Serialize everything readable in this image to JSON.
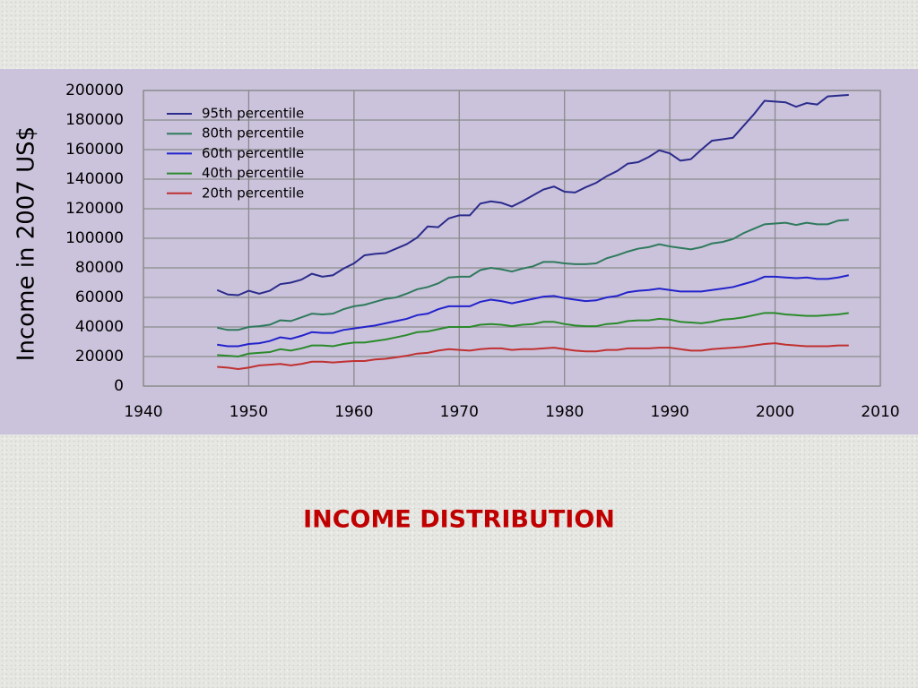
{
  "chart_data": {
    "type": "line",
    "ylabel": "Income in 2007 US$",
    "x": [
      1947,
      1948,
      1949,
      1950,
      1951,
      1952,
      1953,
      1954,
      1955,
      1956,
      1957,
      1958,
      1959,
      1960,
      1961,
      1962,
      1963,
      1964,
      1965,
      1966,
      1967,
      1968,
      1969,
      1970,
      1971,
      1972,
      1973,
      1974,
      1975,
      1976,
      1977,
      1978,
      1979,
      1980,
      1981,
      1982,
      1983,
      1984,
      1985,
      1986,
      1987,
      1988,
      1989,
      1990,
      1991,
      1992,
      1993,
      1994,
      1995,
      1996,
      1997,
      1998,
      1999,
      2000,
      2001,
      2002,
      2003,
      2004,
      2005,
      2006,
      2007
    ],
    "series": [
      {
        "name": "95th percentile",
        "color": "#2b2b8c",
        "values": [
          65000,
          62000,
          61500,
          64500,
          62500,
          64500,
          69000,
          70000,
          72000,
          76000,
          74000,
          75000,
          79500,
          83000,
          88500,
          89500,
          90000,
          93000,
          96000,
          100500,
          108000,
          107500,
          113500,
          115500,
          115500,
          123500,
          125000,
          124000,
          121500,
          125000,
          129000,
          133000,
          135000,
          131500,
          131000,
          134500,
          137500,
          142000,
          145500,
          150500,
          151500,
          155000,
          159500,
          157500,
          152500,
          153500,
          160000,
          166000,
          167000,
          168000,
          176000,
          184000,
          193000,
          192500,
          192000,
          189000,
          191500,
          190500,
          196000,
          196500,
          197000
        ]
      },
      {
        "name": "80th percentile",
        "color": "#2f7a5c",
        "values": [
          39500,
          38000,
          38000,
          40000,
          40500,
          41500,
          44500,
          44000,
          46500,
          49000,
          48500,
          49000,
          52000,
          54000,
          55000,
          57000,
          59000,
          60000,
          62500,
          65500,
          67000,
          69500,
          73500,
          74000,
          74000,
          78500,
          80000,
          79000,
          77500,
          79500,
          81000,
          84000,
          84000,
          83000,
          82500,
          82500,
          83000,
          86500,
          88500,
          91000,
          93000,
          94000,
          96000,
          94500,
          93500,
          92500,
          94000,
          96500,
          97500,
          99500,
          103500,
          106500,
          109500,
          110000,
          110500,
          109000,
          110500,
          109500,
          109500,
          112000,
          112500
        ]
      },
      {
        "name": "60th percentile",
        "color": "#2222cc",
        "values": [
          28000,
          27000,
          27000,
          28500,
          29000,
          30500,
          33000,
          32000,
          34000,
          36500,
          36000,
          36000,
          38000,
          39000,
          40000,
          41000,
          42500,
          44000,
          45500,
          48000,
          49000,
          52000,
          54000,
          54000,
          54000,
          57000,
          58500,
          57500,
          56000,
          57500,
          59000,
          60500,
          61000,
          59500,
          58500,
          57500,
          58000,
          60000,
          61000,
          63500,
          64500,
          65000,
          66000,
          65000,
          64000,
          64000,
          64000,
          65000,
          66000,
          67000,
          69000,
          71000,
          74000,
          74000,
          73500,
          73000,
          73500,
          72500,
          72500,
          73500,
          75000
        ]
      },
      {
        "name": "40th percentile",
        "color": "#2b8a2b",
        "values": [
          21000,
          20500,
          20000,
          22000,
          22500,
          23000,
          25000,
          24000,
          25500,
          27500,
          27500,
          27000,
          28500,
          29500,
          29500,
          30500,
          31500,
          33000,
          34500,
          36500,
          37000,
          38500,
          40000,
          40000,
          40000,
          41500,
          42000,
          41500,
          40500,
          41500,
          42000,
          43500,
          43500,
          42000,
          41000,
          40500,
          40500,
          42000,
          42500,
          44000,
          44500,
          44500,
          45500,
          45000,
          43500,
          43000,
          42500,
          43500,
          45000,
          45500,
          46500,
          48000,
          49500,
          49500,
          48500,
          48000,
          47500,
          47500,
          48000,
          48500,
          49500
        ]
      },
      {
        "name": "20th percentile",
        "color": "#c03030",
        "values": [
          13000,
          12500,
          11500,
          12500,
          14000,
          14500,
          15000,
          14000,
          15000,
          16500,
          16500,
          16000,
          16500,
          17000,
          17000,
          18000,
          18500,
          19500,
          20500,
          22000,
          22500,
          24000,
          25000,
          24500,
          24000,
          25000,
          25500,
          25500,
          24500,
          25000,
          25000,
          25500,
          26000,
          25000,
          24000,
          23500,
          23500,
          24500,
          24500,
          25500,
          25500,
          25500,
          26000,
          26000,
          25000,
          24000,
          24000,
          25000,
          25500,
          26000,
          26500,
          27500,
          28500,
          29000,
          28000,
          27500,
          27000,
          27000,
          27000,
          27500,
          27500
        ]
      }
    ],
    "xlim": [
      1940,
      2010
    ],
    "xticks": [
      1940,
      1950,
      1960,
      1970,
      1980,
      1990,
      2000,
      2010
    ],
    "ylim": [
      0,
      200000
    ],
    "yticks": [
      0,
      20000,
      40000,
      60000,
      80000,
      100000,
      120000,
      140000,
      160000,
      180000,
      200000
    ],
    "grid": true,
    "legend": "upper left"
  },
  "slide_title": "INCOME DISTRIBUTION"
}
